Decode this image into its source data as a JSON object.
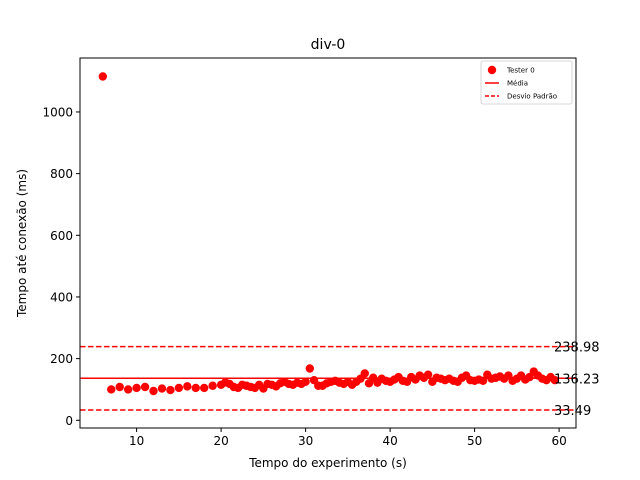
{
  "chart_data": {
    "type": "scatter",
    "title": "div-0",
    "xlabel": "Tempo do experimento (s)",
    "ylabel": "Tempo até conexão (ms)",
    "xlim": [
      3.3,
      62
    ],
    "ylim": [
      -25,
      1175
    ],
    "xticks": [
      10,
      20,
      30,
      40,
      50,
      60
    ],
    "yticks": [
      0,
      200,
      400,
      600,
      800,
      1000
    ],
    "grid": false,
    "legend_position": "top-right",
    "colors": {
      "points": "#ff0000",
      "mean": "#ff0000",
      "std": "#ff0000"
    },
    "series": [
      {
        "name": "Tester 0",
        "x": [
          6.0,
          7.0,
          8.0,
          9.0,
          10.0,
          11.0,
          12.0,
          13.0,
          14.0,
          15.0,
          16.0,
          17.0,
          18.0,
          19.0,
          20.0,
          20.5,
          21.0,
          21.5,
          22.0,
          22.5,
          23.0,
          23.5,
          24.0,
          24.5,
          25.0,
          25.5,
          26.0,
          26.5,
          27.0,
          27.5,
          28.0,
          28.5,
          29.0,
          29.5,
          30.0,
          30.5,
          31.0,
          31.5,
          32.0,
          32.5,
          33.0,
          33.5,
          34.0,
          34.5,
          35.0,
          35.5,
          36.0,
          36.5,
          37.0,
          37.5,
          38.0,
          38.5,
          39.0,
          39.5,
          40.0,
          40.5,
          41.0,
          41.5,
          42.0,
          42.5,
          43.0,
          43.5,
          44.0,
          44.5,
          45.0,
          45.5,
          46.0,
          46.5,
          47.0,
          47.5,
          48.0,
          48.5,
          49.0,
          49.5,
          50.0,
          50.5,
          51.0,
          51.5,
          52.0,
          52.5,
          53.0,
          53.5,
          54.0,
          54.5,
          55.0,
          55.5,
          56.0,
          56.5,
          57.0,
          57.5,
          58.0,
          58.5,
          59.0,
          59.5
        ],
        "y": [
          1115,
          100,
          108,
          100,
          105,
          108,
          95,
          103,
          98,
          105,
          110,
          105,
          105,
          112,
          115,
          123,
          118,
          108,
          105,
          115,
          112,
          108,
          105,
          115,
          103,
          118,
          115,
          110,
          120,
          125,
          118,
          115,
          122,
          118,
          125,
          168,
          130,
          112,
          112,
          120,
          125,
          128,
          122,
          118,
          125,
          115,
          125,
          135,
          152,
          120,
          138,
          122,
          135,
          128,
          125,
          132,
          140,
          128,
          125,
          140,
          132,
          145,
          138,
          148,
          125,
          138,
          135,
          130,
          135,
          128,
          125,
          138,
          145,
          130,
          128,
          132,
          128,
          148,
          135,
          138,
          142,
          135,
          145,
          128,
          135,
          145,
          132,
          140,
          158,
          145,
          135,
          130,
          140,
          130
        ]
      }
    ],
    "mean": {
      "name": "Média",
      "value": 136.23,
      "label": "136.23"
    },
    "std_lines": {
      "name": "Desvio Padrão",
      "upper": {
        "value": 238.98,
        "label": "238.98"
      },
      "lower": {
        "value": 33.49,
        "label": "33.49"
      }
    }
  }
}
